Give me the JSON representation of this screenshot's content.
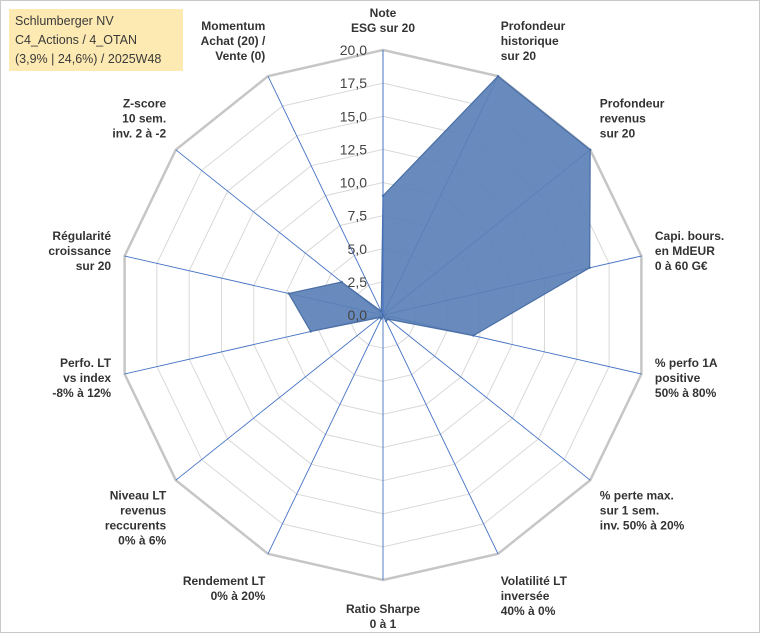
{
  "title_box": {
    "line1": "Schlumberger NV",
    "line2": "C4_Actions / 4_OTAN",
    "line3": "(3,9% | 24,6%) / 2025W48"
  },
  "colors": {
    "fill": "#5b80b6",
    "stroke": "#4a6fa5",
    "grid": "#d9d9d9",
    "outer_grid": "#c6c6c6",
    "spoke": "#4472c4",
    "title_bg": "#fde9b2"
  },
  "chart_data": {
    "type": "radar",
    "title": "Schlumberger NV",
    "rmin": 0,
    "rmax": 20,
    "tick_step": 2.5,
    "tick_labels": [
      "0,0",
      "2,5",
      "5,0",
      "7,5",
      "10,0",
      "12,5",
      "15,0",
      "17,5",
      "20,0"
    ],
    "axes": [
      {
        "label": [
          "Note",
          "ESG sur 20"
        ],
        "value": 9.0
      },
      {
        "label": [
          "Profondeur",
          "historique",
          "sur 20"
        ],
        "value": 20.0
      },
      {
        "label": [
          "Profondeur",
          "revenus",
          "sur 20"
        ],
        "value": 20.0
      },
      {
        "label": [
          "Capi. bours.",
          "en MdEUR",
          "0 à 60 G€"
        ],
        "value": 16.0
      },
      {
        "label": [
          "% perfo 1A",
          "positive",
          "50% à 80%"
        ],
        "value": 7.0
      },
      {
        "label": [
          "% perte max.",
          "sur 1 sem.",
          "inv. 50% à 20%"
        ],
        "value": 0.5
      },
      {
        "label": [
          "Volatilité LT",
          "inversée",
          "40% à 0%"
        ],
        "value": 0.5
      },
      {
        "label": [
          "Ratio Sharpe",
          "0 à 1"
        ],
        "value": 0.0
      },
      {
        "label": [
          "Rendement LT",
          "0% à 20%"
        ],
        "value": 0.3
      },
      {
        "label": [
          "Niveau LT",
          "revenus",
          "reccurents",
          "0% à 6%"
        ],
        "value": 0.3
      },
      {
        "label": [
          "Perfo. LT",
          "vs index",
          "-8% à 12%"
        ],
        "value": 5.6
      },
      {
        "label": [
          "Régularité",
          "croissance",
          "sur 20"
        ],
        "value": 7.3
      },
      {
        "label": [
          "Z-score",
          "10 sem.",
          "inv. 2 à -2"
        ],
        "value": 4.0
      },
      {
        "label": [
          "Momentum",
          "Achat (20) /",
          "Vente (0)"
        ],
        "value": 0.3
      }
    ]
  }
}
